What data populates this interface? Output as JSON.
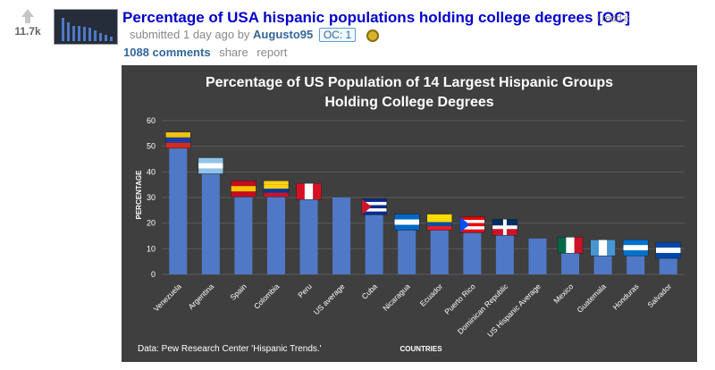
{
  "post": {
    "score": "11.7k",
    "title": "Percentage of USA hispanic populations holding college degrees [OC]",
    "domain": "i.redd.it",
    "submitted_text": "submitted 1 day ago by",
    "author": "Augusto95",
    "flair": "OC: 1",
    "comments_label": "1088 comments",
    "share_label": "share",
    "report_label": "report"
  },
  "chart_data": {
    "type": "bar",
    "title": "Percentage of US Population of 14 Largest Hispanic Groups Holding College Degrees",
    "title_line1": "Percentage of US Population of 14 Largest Hispanic Groups",
    "title_line2": "Holding College Degrees",
    "xlabel": "COUNTRIES",
    "ylabel": "PERCENTAGE",
    "source": "Data: Pew Research Center 'Hispanic Trends.'",
    "ylim": [
      0,
      60
    ],
    "yticks": [
      0,
      10,
      20,
      30,
      40,
      50,
      60
    ],
    "grid": true,
    "categories": [
      "Venezuela",
      "Argentina",
      "Spain",
      "Colombia",
      "Peru",
      "US average",
      "Cuba",
      "Nicaragua",
      "Ecuador",
      "Puerto Rico",
      "Dominican Republic",
      "US Hispanic Average",
      "Mexico",
      "Guatemala",
      "Honduras",
      "Salvador"
    ],
    "values": [
      51,
      41,
      32,
      32,
      31,
      30,
      25,
      19,
      19,
      18,
      17,
      14,
      10,
      9,
      9,
      8
    ],
    "colors": {
      "background": "#3f3f3f",
      "bar": "#4f79c6",
      "text": "#ffffff",
      "grid": "#595959"
    },
    "flags": {
      "Venezuela": "venezuela-flag",
      "Argentina": "argentina-flag",
      "Spain": "spain-flag",
      "Colombia": "colombia-flag",
      "Peru": "peru-flag",
      "Cuba": "cuba-flag",
      "Nicaragua": "nicaragua-flag",
      "Ecuador": "ecuador-flag",
      "Puerto Rico": "puerto-rico-flag",
      "Dominican Republic": "dominican-republic-flag",
      "Mexico": "mexico-flag",
      "Guatemala": "guatemala-flag",
      "Honduras": "honduras-flag",
      "Salvador": "el-salvador-flag"
    }
  }
}
